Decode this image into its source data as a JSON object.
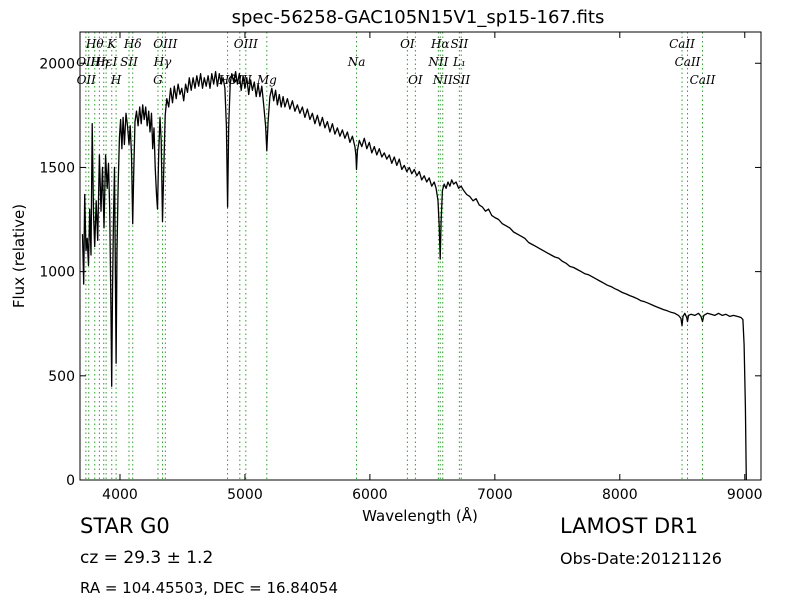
{
  "info": {
    "class": "STAR   G0",
    "survey": "LAMOST DR1",
    "cz": "cz = 29.3 ± 1.2",
    "obs_date": "Obs-Date:20121126",
    "coords": "RA = 104.45503, DEC = 16.84054"
  },
  "chart_data": {
    "type": "line",
    "title": "spec-56258-GAC105N15V1_sp15-167.fits",
    "xlabel": "Wavelength (Å)",
    "ylabel": "Flux (relative)",
    "xlim": [
      3680,
      9130
    ],
    "ylim": [
      0,
      2150
    ],
    "xticks": [
      4000,
      5000,
      6000,
      7000,
      8000,
      9000
    ],
    "yticks": [
      0,
      500,
      1000,
      1500,
      2000
    ],
    "grid": false,
    "colors": {
      "spectrum": "#000000",
      "lines": "#2ca02c"
    },
    "spectral_lines": [
      {
        "label": "Hθ",
        "x": 3798,
        "row": 0
      },
      {
        "label": "K",
        "x": 3934,
        "row": 0
      },
      {
        "label": "Hδ",
        "x": 4102,
        "row": 0
      },
      {
        "label": "OIII",
        "x": 4363,
        "row": 0
      },
      {
        "label": "OIII",
        "x": 5007,
        "row": 0
      },
      {
        "label": "OI",
        "x": 6300,
        "row": 0
      },
      {
        "label": "Hα",
        "x": 6563,
        "row": 0
      },
      {
        "label": "SII",
        "x": 6716,
        "row": 0
      },
      {
        "label": "CaII",
        "x": 8498,
        "row": 0
      },
      {
        "label": "OII",
        "x": 3727,
        "row": 1
      },
      {
        "label": "Hε",
        "x": 3870,
        "row": 1
      },
      {
        "label": "SII",
        "x": 4072,
        "row": 1
      },
      {
        "label": "Hγ",
        "x": 4340,
        "row": 1
      },
      {
        "label": "OIII",
        "x": 4959,
        "row": 2
      },
      {
        "label": "Na",
        "x": 5893,
        "row": 1
      },
      {
        "label": "NII",
        "x": 6548,
        "row": 1
      },
      {
        "label": "L₁",
        "x": 6716,
        "row": 1
      },
      {
        "label": "CaII",
        "x": 8542,
        "row": 1
      },
      {
        "label": "OII",
        "x": 3730,
        "row": 2
      },
      {
        "label": "Hη",
        "x": 3835,
        "row": 1
      },
      {
        "label": "I",
        "x": 3960,
        "row": 1
      },
      {
        "label": "H",
        "x": 3969,
        "row": 2
      },
      {
        "label": "G",
        "x": 4304,
        "row": 3
      },
      {
        "label": "Hβ",
        "x": 4861,
        "row": 3
      },
      {
        "label": "Mg",
        "x": 5175,
        "row": 3
      },
      {
        "label": "OI",
        "x": 6364,
        "row": 3
      },
      {
        "label": "NII",
        "x": 6583,
        "row": 3
      },
      {
        "label": "SII",
        "x": 6731,
        "row": 3
      },
      {
        "label": "CaII",
        "x": 8662,
        "row": 3
      }
    ],
    "line_markers": [
      3727,
      3750,
      3798,
      3835,
      3870,
      3889,
      3934,
      3969,
      4072,
      4102,
      4304,
      4340,
      4363,
      4861,
      4959,
      5007,
      5175,
      5893,
      6300,
      6364,
      6548,
      6563,
      6583,
      6716,
      6731,
      8498,
      8542,
      8662
    ],
    "spectrum": [
      [
        3700,
        1180
      ],
      [
        3710,
        940
      ],
      [
        3718,
        1370
      ],
      [
        3728,
        1100
      ],
      [
        3738,
        1160
      ],
      [
        3748,
        1030
      ],
      [
        3758,
        1300
      ],
      [
        3768,
        1080
      ],
      [
        3778,
        1710
      ],
      [
        3788,
        1280
      ],
      [
        3798,
        1120
      ],
      [
        3810,
        1340
      ],
      [
        3822,
        1150
      ],
      [
        3835,
        1560
      ],
      [
        3848,
        1290
      ],
      [
        3860,
        1500
      ],
      [
        3872,
        1210
      ],
      [
        3885,
        1560
      ],
      [
        3898,
        1400
      ],
      [
        3908,
        1520
      ],
      [
        3918,
        1300
      ],
      [
        3928,
        800
      ],
      [
        3934,
        450
      ],
      [
        3940,
        900
      ],
      [
        3948,
        1260
      ],
      [
        3956,
        1500
      ],
      [
        3962,
        1100
      ],
      [
        3969,
        560
      ],
      [
        3976,
        1100
      ],
      [
        3985,
        1400
      ],
      [
        3995,
        1640
      ],
      [
        4005,
        1730
      ],
      [
        4015,
        1590
      ],
      [
        4025,
        1740
      ],
      [
        4035,
        1610
      ],
      [
        4048,
        1760
      ],
      [
        4060,
        1700
      ],
      [
        4072,
        1610
      ],
      [
        4082,
        1700
      ],
      [
        4092,
        1560
      ],
      [
        4102,
        1230
      ],
      [
        4110,
        1470
      ],
      [
        4120,
        1720
      ],
      [
        4132,
        1770
      ],
      [
        4145,
        1700
      ],
      [
        4158,
        1790
      ],
      [
        4170,
        1710
      ],
      [
        4182,
        1800
      ],
      [
        4194,
        1730
      ],
      [
        4206,
        1790
      ],
      [
        4218,
        1700
      ],
      [
        4230,
        1770
      ],
      [
        4240,
        1670
      ],
      [
        4252,
        1760
      ],
      [
        4262,
        1590
      ],
      [
        4272,
        1690
      ],
      [
        4282,
        1500
      ],
      [
        4292,
        1370
      ],
      [
        4300,
        1300
      ],
      [
        4310,
        1570
      ],
      [
        4320,
        1740
      ],
      [
        4330,
        1630
      ],
      [
        4340,
        1240
      ],
      [
        4350,
        1480
      ],
      [
        4362,
        1750
      ],
      [
        4375,
        1830
      ],
      [
        4390,
        1790
      ],
      [
        4405,
        1880
      ],
      [
        4420,
        1810
      ],
      [
        4435,
        1890
      ],
      [
        4450,
        1830
      ],
      [
        4465,
        1900
      ],
      [
        4480,
        1850
      ],
      [
        4495,
        1880
      ],
      [
        4510,
        1820
      ],
      [
        4525,
        1900
      ],
      [
        4540,
        1860
      ],
      [
        4555,
        1930
      ],
      [
        4570,
        1870
      ],
      [
        4585,
        1930
      ],
      [
        4600,
        1880
      ],
      [
        4615,
        1940
      ],
      [
        4630,
        1890
      ],
      [
        4645,
        1950
      ],
      [
        4660,
        1880
      ],
      [
        4675,
        1930
      ],
      [
        4690,
        1890
      ],
      [
        4705,
        1940
      ],
      [
        4720,
        1880
      ],
      [
        4735,
        1950
      ],
      [
        4750,
        1900
      ],
      [
        4765,
        1960
      ],
      [
        4780,
        1890
      ],
      [
        4795,
        1950
      ],
      [
        4810,
        1900
      ],
      [
        4825,
        1930
      ],
      [
        4840,
        1880
      ],
      [
        4852,
        1700
      ],
      [
        4861,
        1310
      ],
      [
        4870,
        1700
      ],
      [
        4882,
        1900
      ],
      [
        4895,
        1950
      ],
      [
        4910,
        1910
      ],
      [
        4925,
        1960
      ],
      [
        4940,
        1900
      ],
      [
        4955,
        1950
      ],
      [
        4970,
        1870
      ],
      [
        4985,
        1940
      ],
      [
        5000,
        1880
      ],
      [
        5015,
        1930
      ],
      [
        5030,
        1850
      ],
      [
        5045,
        1920
      ],
      [
        5060,
        1870
      ],
      [
        5075,
        1910
      ],
      [
        5090,
        1840
      ],
      [
        5105,
        1900
      ],
      [
        5120,
        1840
      ],
      [
        5135,
        1890
      ],
      [
        5150,
        1800
      ],
      [
        5165,
        1700
      ],
      [
        5175,
        1580
      ],
      [
        5185,
        1720
      ],
      [
        5200,
        1840
      ],
      [
        5215,
        1880
      ],
      [
        5230,
        1820
      ],
      [
        5245,
        1870
      ],
      [
        5260,
        1800
      ],
      [
        5275,
        1850
      ],
      [
        5290,
        1790
      ],
      [
        5305,
        1840
      ],
      [
        5320,
        1790
      ],
      [
        5340,
        1830
      ],
      [
        5360,
        1780
      ],
      [
        5380,
        1820
      ],
      [
        5400,
        1770
      ],
      [
        5420,
        1800
      ],
      [
        5440,
        1760
      ],
      [
        5460,
        1790
      ],
      [
        5480,
        1740
      ],
      [
        5500,
        1780
      ],
      [
        5520,
        1730
      ],
      [
        5540,
        1760
      ],
      [
        5560,
        1710
      ],
      [
        5580,
        1750
      ],
      [
        5600,
        1700
      ],
      [
        5620,
        1740
      ],
      [
        5640,
        1690
      ],
      [
        5660,
        1720
      ],
      [
        5680,
        1670
      ],
      [
        5700,
        1710
      ],
      [
        5720,
        1660
      ],
      [
        5740,
        1690
      ],
      [
        5760,
        1650
      ],
      [
        5780,
        1680
      ],
      [
        5800,
        1640
      ],
      [
        5820,
        1670
      ],
      [
        5840,
        1620
      ],
      [
        5860,
        1650
      ],
      [
        5880,
        1600
      ],
      [
        5888,
        1560
      ],
      [
        5893,
        1490
      ],
      [
        5900,
        1580
      ],
      [
        5915,
        1630
      ],
      [
        5935,
        1600
      ],
      [
        5955,
        1640
      ],
      [
        5975,
        1590
      ],
      [
        5995,
        1620
      ],
      [
        6015,
        1570
      ],
      [
        6035,
        1600
      ],
      [
        6055,
        1560
      ],
      [
        6075,
        1590
      ],
      [
        6095,
        1550
      ],
      [
        6115,
        1570
      ],
      [
        6135,
        1540
      ],
      [
        6155,
        1560
      ],
      [
        6175,
        1520
      ],
      [
        6195,
        1550
      ],
      [
        6215,
        1510
      ],
      [
        6235,
        1540
      ],
      [
        6255,
        1490
      ],
      [
        6275,
        1510
      ],
      [
        6295,
        1480
      ],
      [
        6315,
        1500
      ],
      [
        6335,
        1470
      ],
      [
        6355,
        1490
      ],
      [
        6375,
        1460
      ],
      [
        6395,
        1480
      ],
      [
        6415,
        1440
      ],
      [
        6435,
        1460
      ],
      [
        6455,
        1430
      ],
      [
        6475,
        1450
      ],
      [
        6495,
        1410
      ],
      [
        6515,
        1430
      ],
      [
        6530,
        1400
      ],
      [
        6545,
        1340
      ],
      [
        6555,
        1220
      ],
      [
        6563,
        1060
      ],
      [
        6570,
        1240
      ],
      [
        6580,
        1390
      ],
      [
        6595,
        1420
      ],
      [
        6610,
        1400
      ],
      [
        6625,
        1430
      ],
      [
        6640,
        1410
      ],
      [
        6655,
        1440
      ],
      [
        6670,
        1420
      ],
      [
        6690,
        1430
      ],
      [
        6710,
        1400
      ],
      [
        6730,
        1410
      ],
      [
        6750,
        1390
      ],
      [
        6775,
        1370
      ],
      [
        6800,
        1360
      ],
      [
        6825,
        1340
      ],
      [
        6850,
        1350
      ],
      [
        6875,
        1320
      ],
      [
        6900,
        1310
      ],
      [
        6925,
        1290
      ],
      [
        6950,
        1300
      ],
      [
        6975,
        1270
      ],
      [
        7000,
        1260
      ],
      [
        7030,
        1250
      ],
      [
        7060,
        1230
      ],
      [
        7090,
        1220
      ],
      [
        7120,
        1210
      ],
      [
        7150,
        1190
      ],
      [
        7180,
        1180
      ],
      [
        7210,
        1170
      ],
      [
        7240,
        1160
      ],
      [
        7270,
        1140
      ],
      [
        7300,
        1130
      ],
      [
        7330,
        1120
      ],
      [
        7360,
        1110
      ],
      [
        7390,
        1100
      ],
      [
        7420,
        1090
      ],
      [
        7450,
        1080
      ],
      [
        7480,
        1070
      ],
      [
        7510,
        1065
      ],
      [
        7540,
        1050
      ],
      [
        7570,
        1040
      ],
      [
        7600,
        1025
      ],
      [
        7630,
        1020
      ],
      [
        7660,
        1010
      ],
      [
        7690,
        1000
      ],
      [
        7720,
        990
      ],
      [
        7750,
        985
      ],
      [
        7780,
        975
      ],
      [
        7810,
        965
      ],
      [
        7840,
        955
      ],
      [
        7870,
        945
      ],
      [
        7900,
        935
      ],
      [
        7930,
        928
      ],
      [
        7960,
        918
      ],
      [
        7990,
        910
      ],
      [
        8020,
        900
      ],
      [
        8050,
        893
      ],
      [
        8080,
        885
      ],
      [
        8110,
        878
      ],
      [
        8140,
        870
      ],
      [
        8170,
        860
      ],
      [
        8200,
        855
      ],
      [
        8230,
        848
      ],
      [
        8260,
        840
      ],
      [
        8290,
        832
      ],
      [
        8320,
        825
      ],
      [
        8350,
        818
      ],
      [
        8380,
        812
      ],
      [
        8410,
        805
      ],
      [
        8440,
        800
      ],
      [
        8470,
        790
      ],
      [
        8490,
        775
      ],
      [
        8498,
        740
      ],
      [
        8506,
        785
      ],
      [
        8520,
        800
      ],
      [
        8535,
        780
      ],
      [
        8542,
        760
      ],
      [
        8550,
        790
      ],
      [
        8570,
        795
      ],
      [
        8600,
        790
      ],
      [
        8630,
        800
      ],
      [
        8650,
        785
      ],
      [
        8662,
        760
      ],
      [
        8672,
        790
      ],
      [
        8700,
        800
      ],
      [
        8730,
        795
      ],
      [
        8760,
        790
      ],
      [
        8790,
        800
      ],
      [
        8820,
        790
      ],
      [
        8850,
        795
      ],
      [
        8880,
        785
      ],
      [
        8910,
        790
      ],
      [
        8940,
        785
      ],
      [
        8970,
        780
      ],
      [
        8985,
        770
      ],
      [
        8995,
        650
      ],
      [
        9005,
        350
      ],
      [
        9012,
        0
      ]
    ]
  }
}
